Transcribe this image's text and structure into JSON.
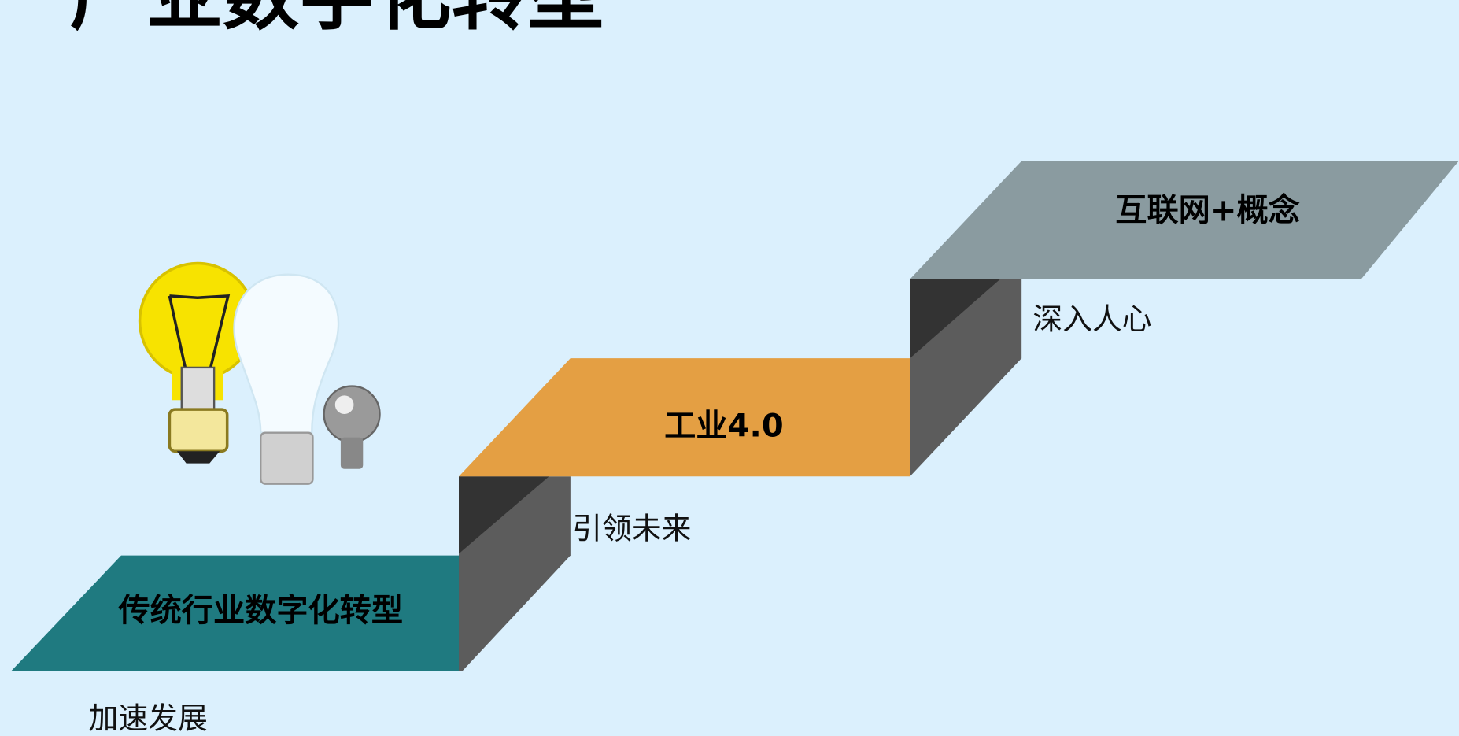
{
  "title": "产业数字化转型",
  "steps": [
    {
      "label": "传统行业数字化转型",
      "caption": "加速发展"
    },
    {
      "label": "工业4.0",
      "caption": "引领未来"
    },
    {
      "label": "互联网+概念",
      "caption": "深入人心"
    }
  ]
}
